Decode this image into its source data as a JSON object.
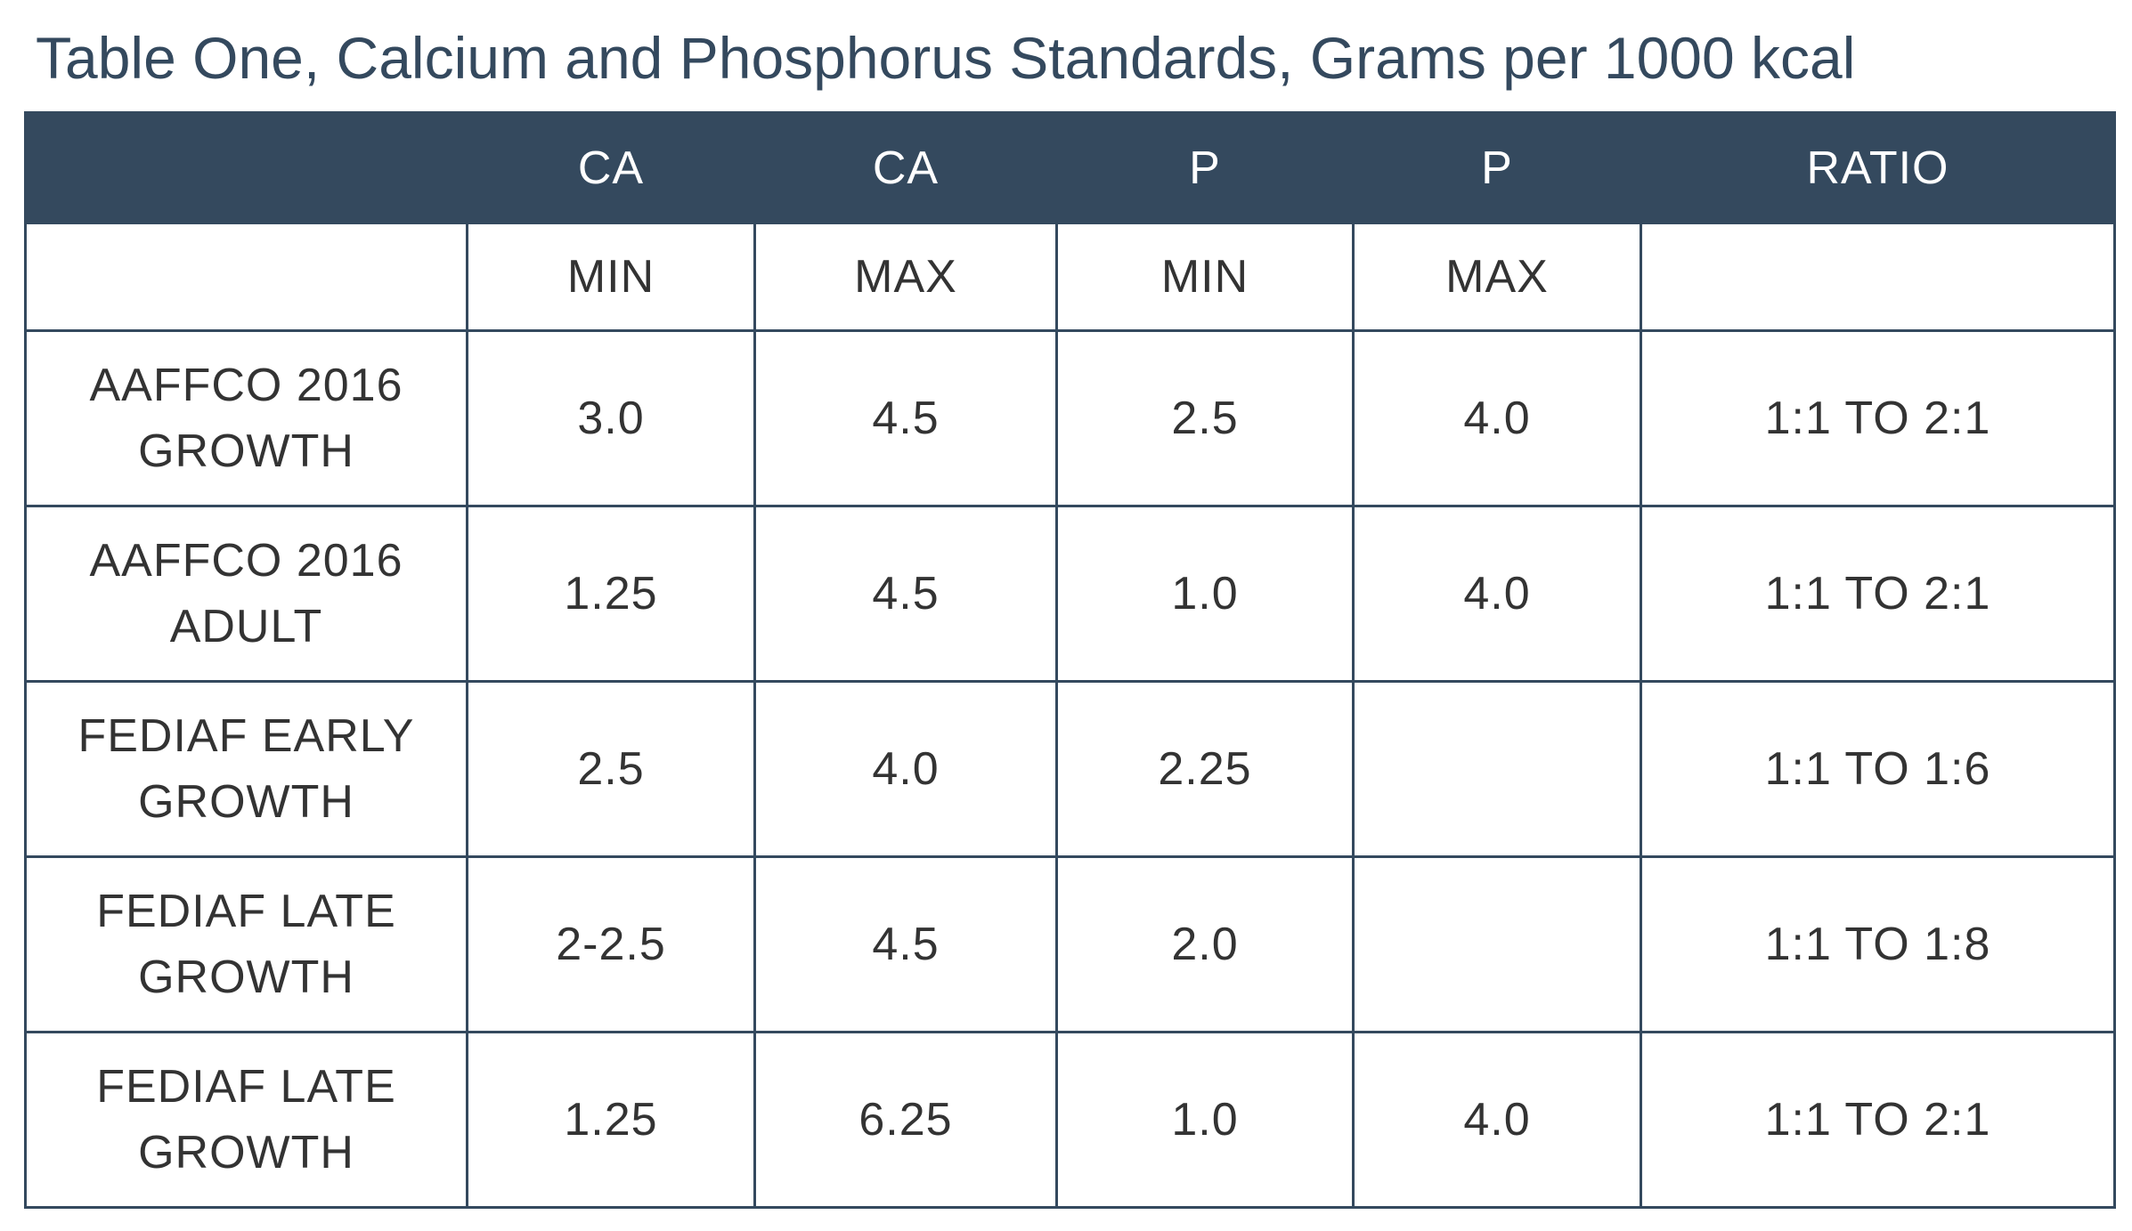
{
  "title": "Table One, Calcium and Phosphorus Standards, Grams per 1000 kcal",
  "table": {
    "header": [
      "",
      "CA",
      "CA",
      "P",
      "P",
      "RATIO"
    ],
    "subheader": [
      "",
      "MIN",
      "MAX",
      "MIN",
      "MAX",
      ""
    ],
    "rows": [
      {
        "label_line1": "AAFFCO 2016",
        "label_line2": "GROWTH",
        "ca_min": "3.0",
        "ca_max": "4.5",
        "p_min": "2.5",
        "p_max": "4.0",
        "ratio": "1:1 TO 2:1"
      },
      {
        "label_line1": "AAFFCO 2016",
        "label_line2": "ADULT",
        "ca_min": "1.25",
        "ca_max": "4.5",
        "p_min": "1.0",
        "p_max": "4.0",
        "ratio": "1:1 TO 2:1"
      },
      {
        "label_line1": "FEDIAF EARLY",
        "label_line2": "GROWTH",
        "ca_min": "2.5",
        "ca_max": "4.0",
        "p_min": "2.25",
        "p_max": "",
        "ratio": "1:1 TO 1:6"
      },
      {
        "label_line1": "FEDIAF LATE",
        "label_line2": "GROWTH",
        "ca_min": "2-2.5",
        "ca_max": "4.5",
        "p_min": "2.0",
        "p_max": "",
        "ratio": "1:1 TO 1:8"
      },
      {
        "label_line1": "FEDIAF LATE",
        "label_line2": "GROWTH",
        "ca_min": "1.25",
        "ca_max": "6.25",
        "p_min": "1.0",
        "p_max": "4.0",
        "ratio": "1:1 TO 2:1"
      }
    ]
  },
  "colors": {
    "header_bg": "#34495e",
    "header_text": "#ffffff",
    "title_text": "#34495e",
    "body_text": "#333333",
    "border": "#34495e"
  }
}
